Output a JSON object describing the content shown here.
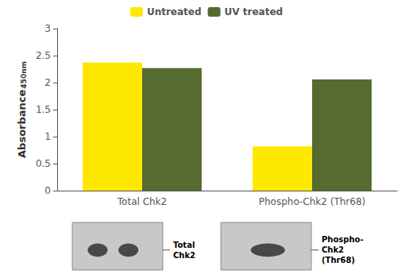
{
  "chart_data": {
    "type": "bar",
    "categories": [
      "Total Chk2",
      "Phospho-Chk2 (Thr68)"
    ],
    "series": [
      {
        "name": "Untreated",
        "color": "#FFE800",
        "values": [
          2.37,
          0.82
        ]
      },
      {
        "name": "UV treated",
        "color": "#556B2F",
        "values": [
          2.27,
          2.06
        ]
      }
    ],
    "ylabel": "Absorbance",
    "ylabel_subscript": "450nm",
    "ylim": [
      0,
      3
    ],
    "yticks": [
      0,
      0.5,
      1,
      1.5,
      2,
      2.5,
      3
    ],
    "grid": false,
    "legend": "top",
    "annotations": [
      "Total\nChk2",
      "Phospho-\nChk2\n(Thr68)"
    ]
  }
}
